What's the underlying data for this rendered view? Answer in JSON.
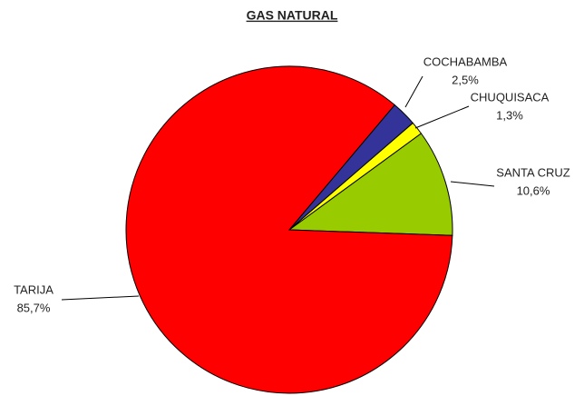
{
  "chart_data": {
    "type": "pie",
    "title": "GAS NATURAL",
    "categories": [
      "SANTA CRUZ",
      "CHUQUISACA",
      "COCHABAMBA",
      "TARIJA"
    ],
    "values": [
      10.6,
      1.3,
      2.5,
      85.7
    ],
    "value_labels": [
      "10,6%",
      "1,3%",
      "2,5%",
      "85,7%"
    ],
    "colors": [
      "#99cc00",
      "#ffff00",
      "#333399",
      "#ff0000"
    ]
  }
}
